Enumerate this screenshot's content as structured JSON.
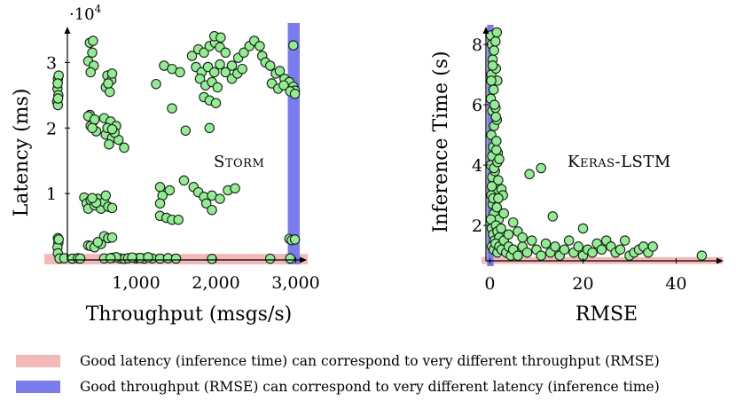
{
  "colors": {
    "marker_fill": "#90ee90",
    "marker_stroke": "#1a1a1a",
    "red_band": "#f5b8b8",
    "blue_band": "#7b7bf0"
  },
  "chart_data": [
    {
      "type": "scatter",
      "title": "Storm",
      "xlabel": "Throughput (msgs/s)",
      "ylabel": "Latency (ms)",
      "y_multiplier_label": "·10",
      "y_multiplier_exp": "4",
      "xlim": [
        -150,
        3150
      ],
      "ylim": [
        -800,
        36000
      ],
      "xticks": [
        1000,
        2000,
        3000
      ],
      "xtick_labels": [
        "1,000",
        "2,000",
        "3,000"
      ],
      "yticks": [
        10000,
        20000,
        30000
      ],
      "ytick_labels": [
        "1",
        "2",
        "3"
      ],
      "red_band": {
        "axis": "y",
        "range": [
          -800,
          800
        ]
      },
      "blue_band": {
        "axis": "x",
        "range": [
          2900,
          3050
        ]
      },
      "points": [
        [
          20,
          27500
        ],
        [
          15,
          26000
        ],
        [
          25,
          25000
        ],
        [
          10,
          24000
        ],
        [
          30,
          28000
        ],
        [
          20,
          23500
        ],
        [
          18,
          26800
        ],
        [
          22,
          24500
        ],
        [
          20,
          3200
        ],
        [
          25,
          2500
        ],
        [
          15,
          1800
        ],
        [
          30,
          3000
        ],
        [
          20,
          900
        ],
        [
          420,
          33000
        ],
        [
          450,
          31500
        ],
        [
          400,
          30200
        ],
        [
          470,
          29500
        ],
        [
          430,
          28500
        ],
        [
          460,
          33300
        ],
        [
          640,
          28000
        ],
        [
          690,
          27300
        ],
        [
          620,
          26200
        ],
        [
          670,
          25500
        ],
        [
          700,
          28300
        ],
        [
          650,
          26800
        ],
        [
          420,
          22000
        ],
        [
          460,
          21000
        ],
        [
          430,
          20300
        ],
        [
          500,
          19500
        ],
        [
          400,
          21800
        ],
        [
          480,
          21300
        ],
        [
          450,
          20000
        ],
        [
          600,
          21500
        ],
        [
          680,
          21000
        ],
        [
          750,
          20300
        ],
        [
          620,
          19000
        ],
        [
          700,
          18500
        ],
        [
          780,
          18200
        ],
        [
          660,
          17500
        ],
        [
          850,
          17000
        ],
        [
          640,
          20000
        ],
        [
          730,
          19300
        ],
        [
          700,
          19800
        ],
        [
          350,
          9400
        ],
        [
          380,
          8500
        ],
        [
          400,
          7700
        ],
        [
          430,
          9000
        ],
        [
          480,
          8200
        ],
        [
          520,
          9200
        ],
        [
          560,
          7700
        ],
        [
          600,
          8700
        ],
        [
          620,
          9700
        ],
        [
          650,
          8000
        ],
        [
          700,
          7800
        ],
        [
          500,
          8600
        ],
        [
          450,
          9300
        ],
        [
          400,
          2100
        ],
        [
          430,
          2000
        ],
        [
          480,
          1800
        ],
        [
          560,
          2300
        ],
        [
          600,
          3500
        ],
        [
          650,
          3200
        ],
        [
          700,
          3300
        ],
        [
          520,
          2600
        ],
        [
          600,
          100
        ],
        [
          700,
          200
        ],
        [
          800,
          100
        ],
        [
          850,
          50
        ],
        [
          900,
          150
        ],
        [
          1000,
          100
        ],
        [
          1100,
          80
        ],
        [
          1200,
          120
        ],
        [
          1300,
          80
        ],
        [
          1400,
          150
        ],
        [
          1500,
          80
        ],
        [
          1050,
          200
        ],
        [
          950,
          250
        ],
        [
          750,
          300
        ],
        [
          680,
          150
        ],
        [
          1150,
          300
        ],
        [
          1350,
          29500
        ],
        [
          1450,
          29000
        ],
        [
          1550,
          28500
        ],
        [
          1250,
          26700
        ],
        [
          1620,
          19600
        ],
        [
          1700,
          31000
        ],
        [
          1780,
          32000
        ],
        [
          1850,
          31500
        ],
        [
          1920,
          32500
        ],
        [
          1990,
          33000
        ],
        [
          2050,
          32300
        ],
        [
          2120,
          31500
        ],
        [
          1750,
          29300
        ],
        [
          1820,
          28500
        ],
        [
          1900,
          29300
        ],
        [
          1980,
          28500
        ],
        [
          2050,
          29700
        ],
        [
          2120,
          28500
        ],
        [
          2200,
          29500
        ],
        [
          2280,
          30700
        ],
        [
          2350,
          31500
        ],
        [
          2420,
          32500
        ],
        [
          2480,
          33300
        ],
        [
          2550,
          32500
        ],
        [
          1800,
          27500
        ],
        [
          1870,
          26500
        ],
        [
          1950,
          27000
        ],
        [
          2020,
          26200
        ],
        [
          2200,
          27500
        ],
        [
          2270,
          28300
        ],
        [
          2330,
          29000
        ],
        [
          2580,
          31000
        ],
        [
          2620,
          30000
        ],
        [
          2680,
          29500
        ],
        [
          2750,
          28300
        ],
        [
          2800,
          28700
        ],
        [
          2860,
          27500
        ],
        [
          2920,
          27000
        ],
        [
          2970,
          26300
        ],
        [
          2990,
          25700
        ],
        [
          2700,
          26800
        ],
        [
          2780,
          26000
        ],
        [
          2850,
          26500
        ],
        [
          2930,
          25600
        ],
        [
          2990,
          25200
        ],
        [
          1980,
          34000
        ],
        [
          2060,
          33800
        ],
        [
          1850,
          24700
        ],
        [
          1920,
          24200
        ],
        [
          2000,
          23800
        ],
        [
          1300,
          11000
        ],
        [
          1420,
          10500
        ],
        [
          1330,
          9700
        ],
        [
          1600,
          12000
        ],
        [
          1720,
          11000
        ],
        [
          1780,
          10200
        ],
        [
          1850,
          9500
        ],
        [
          1950,
          9700
        ],
        [
          2050,
          9200
        ],
        [
          2150,
          10500
        ],
        [
          2240,
          10800
        ],
        [
          1880,
          8500
        ],
        [
          1950,
          7500
        ],
        [
          1300,
          8500
        ],
        [
          1300,
          6600
        ],
        [
          1380,
          6300
        ],
        [
          1450,
          6000
        ],
        [
          1530,
          6000
        ],
        [
          2920,
          3100
        ],
        [
          2950,
          2900
        ],
        [
          2990,
          3000
        ],
        [
          1920,
          20000
        ],
        [
          1450,
          23000
        ],
        [
          2970,
          32600
        ],
        [
          40,
          100
        ],
        [
          100,
          150
        ],
        [
          200,
          80
        ],
        [
          270,
          150
        ],
        [
          300,
          90
        ],
        [
          1950,
          40
        ],
        [
          2680,
          60
        ],
        [
          2930,
          100
        ]
      ]
    },
    {
      "type": "scatter",
      "title": "Keras-LSTM",
      "xlabel": "RMSE",
      "ylabel": "Inference Time (s)",
      "xlim": [
        -1.8,
        50
      ],
      "ylim": [
        0.65,
        8.65
      ],
      "xticks": [
        0,
        20,
        40
      ],
      "xtick_labels": [
        "0",
        "20",
        "40"
      ],
      "yticks": [
        2,
        4,
        6,
        8
      ],
      "ytick_labels": [
        "2",
        "4",
        "6",
        "8"
      ],
      "red_band": {
        "axis": "y",
        "range": [
          0.72,
          0.95
        ]
      },
      "blue_band": {
        "axis": "x",
        "range": [
          -0.6,
          0.8
        ]
      },
      "points": [
        [
          0.2,
          8.3
        ],
        [
          0.4,
          8.0
        ],
        [
          0.6,
          7.5
        ],
        [
          0.9,
          7.8
        ],
        [
          1.2,
          8.1
        ],
        [
          1.5,
          8.4
        ],
        [
          0.3,
          7.0
        ],
        [
          0.8,
          6.5
        ],
        [
          1.3,
          7.2
        ],
        [
          1.6,
          6.8
        ],
        [
          0.2,
          6.2
        ],
        [
          0.5,
          5.8
        ],
        [
          0.9,
          5.3
        ],
        [
          1.2,
          5.9
        ],
        [
          1.5,
          5.5
        ],
        [
          0.3,
          5.0
        ],
        [
          0.7,
          4.6
        ],
        [
          1.0,
          4.2
        ],
        [
          1.4,
          4.8
        ],
        [
          1.7,
          4.4
        ],
        [
          0.2,
          4.0
        ],
        [
          0.5,
          3.6
        ],
        [
          0.8,
          3.3
        ],
        [
          1.1,
          3.8
        ],
        [
          1.4,
          3.1
        ],
        [
          1.8,
          3.5
        ],
        [
          0.3,
          3.0
        ],
        [
          0.6,
          2.7
        ],
        [
          0.9,
          2.4
        ],
        [
          1.2,
          2.9
        ],
        [
          1.5,
          2.6
        ],
        [
          1.9,
          2.2
        ],
        [
          0.2,
          2.2
        ],
        [
          0.4,
          1.9
        ],
        [
          0.7,
          1.7
        ],
        [
          1.0,
          1.5
        ],
        [
          1.3,
          2.0
        ],
        [
          1.6,
          1.8
        ],
        [
          2.0,
          1.6
        ],
        [
          2.4,
          1.9
        ],
        [
          0.4,
          1.3
        ],
        [
          0.8,
          1.2
        ],
        [
          1.2,
          1.4
        ],
        [
          1.6,
          1.1
        ],
        [
          2.0,
          1.3
        ],
        [
          2.5,
          1.2
        ],
        [
          3.0,
          1.5
        ],
        [
          3.5,
          1.1
        ],
        [
          4.0,
          1.3
        ],
        [
          4.5,
          1.0
        ],
        [
          0.3,
          6.8
        ],
        [
          0.6,
          7.3
        ],
        [
          1.0,
          6.0
        ],
        [
          1.3,
          5.6
        ],
        [
          0.5,
          4.3
        ],
        [
          0.9,
          3.9
        ],
        [
          1.4,
          4.5
        ],
        [
          1.6,
          4.1
        ],
        [
          0.4,
          3.3
        ],
        [
          0.7,
          2.9
        ],
        [
          5,
          1.2
        ],
        [
          6,
          1.0
        ],
        [
          7,
          1.3
        ],
        [
          8,
          1.1
        ],
        [
          9,
          1.5
        ],
        [
          10,
          1.2
        ],
        [
          11,
          1.0
        ],
        [
          12,
          1.4
        ],
        [
          13,
          1.1
        ],
        [
          14,
          1.3
        ],
        [
          15,
          1.0
        ],
        [
          16,
          1.2
        ],
        [
          17,
          1.5
        ],
        [
          18,
          1.1
        ],
        [
          19,
          1.3
        ],
        [
          20,
          1.0
        ],
        [
          21,
          1.2
        ],
        [
          22,
          1.1
        ],
        [
          23,
          1.4
        ],
        [
          24,
          1.2
        ],
        [
          25,
          1.5
        ],
        [
          26,
          1.3
        ],
        [
          27,
          1.1
        ],
        [
          28,
          1.2
        ],
        [
          29,
          1.5
        ],
        [
          30,
          1.0
        ],
        [
          31,
          1.1
        ],
        [
          32,
          1.2
        ],
        [
          33,
          1.3
        ],
        [
          34,
          1.1
        ],
        [
          35,
          1.3
        ],
        [
          2.5,
          3.2
        ],
        [
          3.0,
          2.4
        ],
        [
          5.0,
          2.1
        ],
        [
          4.0,
          1.7
        ],
        [
          6.0,
          1.8
        ],
        [
          7.0,
          1.6
        ],
        [
          8.5,
          3.7
        ],
        [
          11,
          3.9
        ],
        [
          13.5,
          2.3
        ],
        [
          20,
          1.9
        ],
        [
          45.5,
          1.0
        ],
        [
          2.0,
          4.2
        ],
        [
          2.8,
          3.0
        ],
        [
          1.8,
          2.9
        ]
      ]
    }
  ],
  "legend": [
    {
      "label": "Good latency (inference time) can correspond to very different throughput (RMSE)",
      "color": "#f5b8b8"
    },
    {
      "label": "Good throughput (RMSE) can correspond to very different latency (inference time)",
      "color": "#7b7bf0"
    }
  ]
}
